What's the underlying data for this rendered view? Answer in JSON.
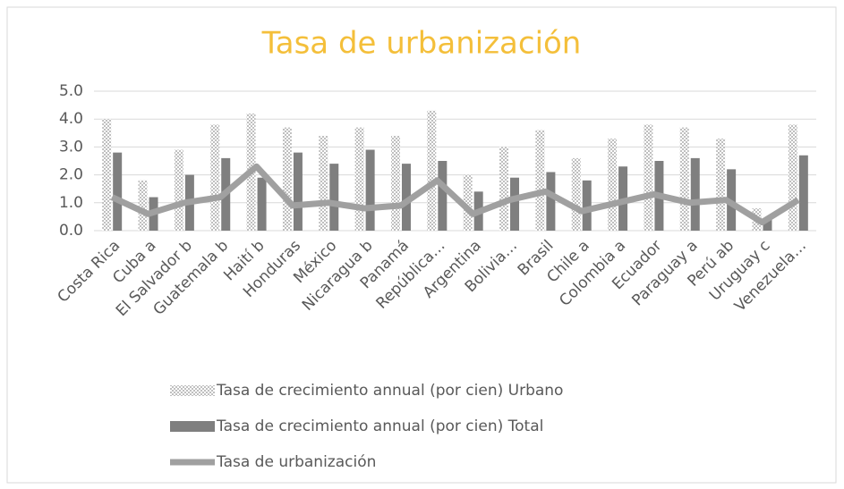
{
  "chart_data": {
    "type": "bar",
    "title": "Tasa de urbanización",
    "categories": [
      "Costa Rica",
      "Cuba a",
      "El Salvador b",
      "Guatemala b",
      "Haití b",
      "Honduras",
      "México",
      "Nicaragua b",
      "Panamá",
      "República…",
      "Argentina",
      "Bolivia…",
      "Brasil",
      "Chile a",
      "Colombia  a",
      "Ecuador",
      "Paraguay  a",
      "Perú ab",
      "Uruguay c",
      "Venezuela…"
    ],
    "series": [
      {
        "name": "Tasa de crecimiento annual (por cien) Urbano",
        "type": "bar",
        "color": "#bfbfbf",
        "hatch": true,
        "values": [
          4.0,
          1.8,
          2.9,
          3.8,
          4.2,
          3.7,
          3.4,
          3.7,
          3.4,
          4.3,
          2.0,
          3.0,
          3.6,
          2.6,
          3.3,
          3.8,
          3.7,
          3.3,
          0.8,
          3.8
        ]
      },
      {
        "name": "Tasa de crecimiento annual (por cien) Total",
        "type": "bar",
        "color": "#7f7f7f",
        "values": [
          2.8,
          1.2,
          2.0,
          2.6,
          1.9,
          2.8,
          2.4,
          2.9,
          2.4,
          2.5,
          1.4,
          1.9,
          2.1,
          1.8,
          2.3,
          2.5,
          2.6,
          2.2,
          0.4,
          2.7
        ]
      },
      {
        "name": "Tasa de urbanización",
        "type": "line",
        "color": "#a0a0a0",
        "values": [
          1.2,
          0.6,
          1.0,
          1.2,
          2.3,
          0.9,
          1.0,
          0.8,
          0.9,
          1.8,
          0.6,
          1.1,
          1.4,
          0.7,
          1.0,
          1.3,
          1.0,
          1.1,
          0.3,
          1.1
        ]
      }
    ],
    "ylim": [
      0,
      5
    ],
    "yticks": [
      {
        "value": 0,
        "label": "0.0"
      },
      {
        "value": 1,
        "label": "1.0"
      },
      {
        "value": 2,
        "label": "2.0"
      },
      {
        "value": 3,
        "label": "3.0"
      },
      {
        "value": 4,
        "label": "4.0"
      },
      {
        "value": 5,
        "label": "5.0"
      }
    ],
    "grid": true,
    "legend": "bottom",
    "title_color": "#f4bf3a"
  }
}
